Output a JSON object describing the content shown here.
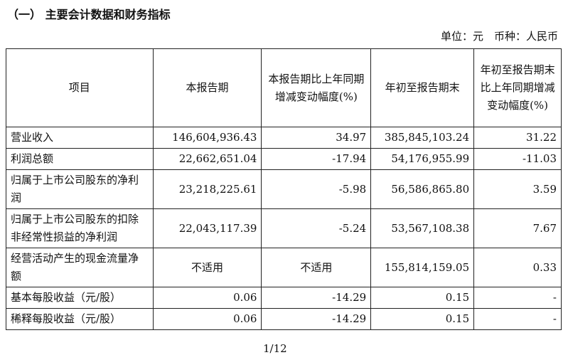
{
  "title": "（一） 主要会计数据和财务指标",
  "unit_line": "单位：元　币种：人民币",
  "table": {
    "headers": [
      "项目",
      "本报告期",
      "本报告期比上年同期增减变动幅度(%)",
      "年初至报告期末",
      "年初至报告期末比上年同期增减变动幅度(%)"
    ],
    "rows": [
      [
        "营业收入",
        "146,604,936.43",
        "34.97",
        "385,845,103.24",
        "31.22"
      ],
      [
        "利润总额",
        "22,662,651.04",
        "-17.94",
        "54,176,955.99",
        "-11.03"
      ],
      [
        "归属于上市公司股东的净利润",
        "23,218,225.61",
        "-5.98",
        "56,586,865.80",
        "3.59"
      ],
      [
        "归属于上市公司股东的扣除非经常性损益的净利润",
        "22,043,117.39",
        "-5.24",
        "53,567,108.38",
        "7.67"
      ],
      [
        "经营活动产生的现金流量净额",
        "不适用",
        "不适用",
        "155,814,159.05",
        "0.33"
      ],
      [
        "基本每股收益（元/股）",
        "0.06",
        "-14.29",
        "0.15",
        "-"
      ],
      [
        "稀释每股收益（元/股）",
        "0.06",
        "-14.29",
        "0.15",
        "-"
      ]
    ]
  },
  "page_number": "1/12"
}
